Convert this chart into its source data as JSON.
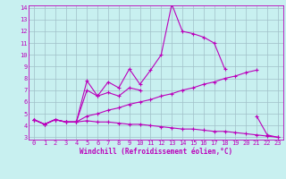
{
  "x": [
    0,
    1,
    2,
    3,
    4,
    5,
    6,
    7,
    8,
    9,
    10,
    11,
    12,
    13,
    14,
    15,
    16,
    17,
    18,
    19,
    20,
    21,
    22,
    23
  ],
  "line1": [
    4.5,
    4.1,
    4.5,
    4.3,
    4.3,
    7.8,
    6.5,
    7.7,
    7.2,
    8.8,
    7.5,
    8.7,
    10.0,
    14.3,
    12.0,
    11.8,
    11.5,
    11.0,
    8.8,
    null,
    null,
    4.8,
    3.2,
    3.0
  ],
  "line2": [
    4.5,
    4.1,
    4.5,
    4.3,
    4.3,
    7.0,
    6.5,
    6.8,
    6.5,
    7.2,
    7.0,
    null,
    null,
    null,
    null,
    null,
    null,
    null,
    null,
    null,
    null,
    null,
    null,
    null
  ],
  "line3": [
    4.5,
    4.1,
    4.5,
    4.3,
    4.3,
    4.8,
    5.0,
    5.3,
    5.5,
    5.8,
    6.0,
    6.2,
    6.5,
    6.7,
    7.0,
    7.2,
    7.5,
    7.7,
    8.0,
    8.2,
    8.5,
    8.7,
    null,
    null
  ],
  "line4": [
    4.5,
    4.1,
    4.5,
    4.3,
    4.3,
    4.4,
    4.3,
    4.3,
    4.2,
    4.1,
    4.1,
    4.0,
    3.9,
    3.8,
    3.7,
    3.7,
    3.6,
    3.5,
    3.5,
    3.4,
    3.3,
    3.2,
    3.1,
    3.0
  ],
  "xlabel": "Windchill (Refroidissement éolien,°C)",
  "ylim_min": 3,
  "ylim_max": 14,
  "xlim_min": 0,
  "xlim_max": 23,
  "yticks": [
    3,
    4,
    5,
    6,
    7,
    8,
    9,
    10,
    11,
    12,
    13,
    14
  ],
  "xticks": [
    0,
    1,
    2,
    3,
    4,
    5,
    6,
    7,
    8,
    9,
    10,
    11,
    12,
    13,
    14,
    15,
    16,
    17,
    18,
    19,
    20,
    21,
    22,
    23
  ],
  "line_color": "#bb00bb",
  "bg_color": "#c8f0f0",
  "grid_color": "#a0c0c8",
  "marker": "+",
  "markersize": 3,
  "linewidth": 0.8,
  "tick_fontsize": 5.0,
  "xlabel_fontsize": 5.5
}
